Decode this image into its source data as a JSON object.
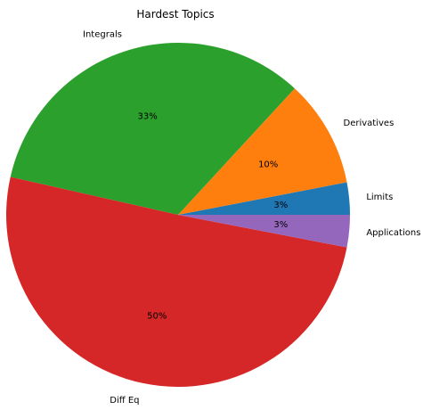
{
  "chart_data": {
    "type": "pie",
    "title": "Hardest Topics",
    "categories": [
      "Limits",
      "Derivatives",
      "Integrals",
      "Diff Eq",
      "Applications"
    ],
    "values": [
      3,
      10,
      33,
      50,
      3
    ],
    "value_labels": [
      "3%",
      "10%",
      "33%",
      "50%",
      "3%"
    ],
    "colors": [
      "#1f77b4",
      "#ff7f0e",
      "#2ca02c",
      "#d62728",
      "#9467bd"
    ],
    "start_angle_deg": 0,
    "direction": "counterclockwise",
    "legend": "none",
    "labels_outside": true
  }
}
